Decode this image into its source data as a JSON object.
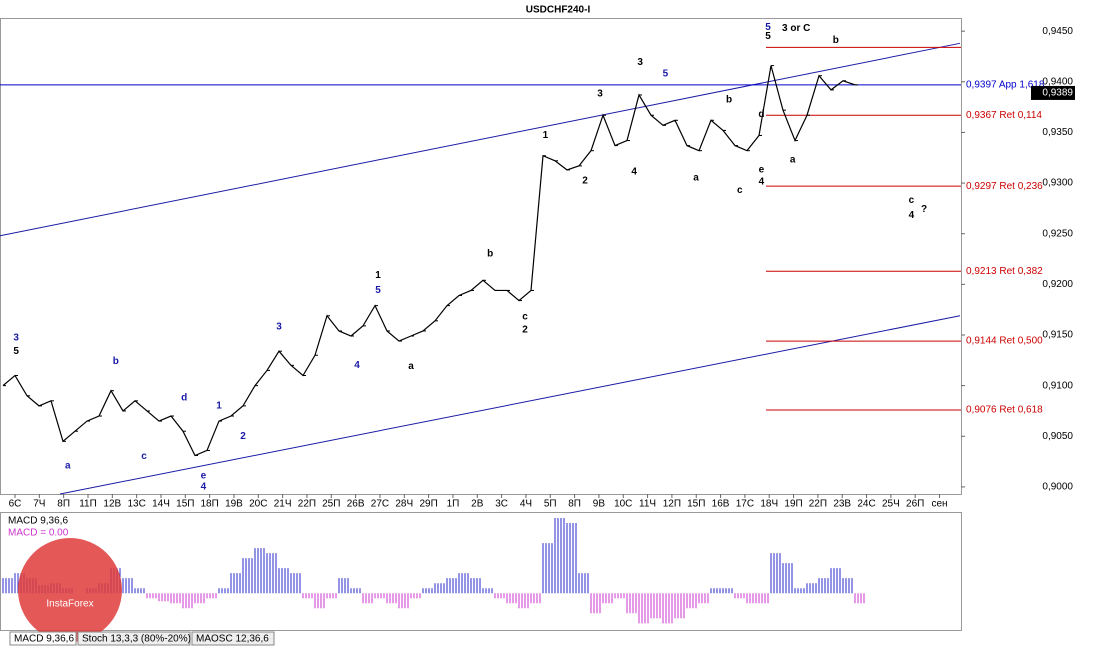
{
  "chart_data": {
    "type": "line",
    "title": "USDCHF240-I",
    "watermark": "InstaForex",
    "ylim": [
      0.8993,
      0.9463
    ],
    "yticks": [
      {
        "value": 0.9,
        "label": "0,9000"
      },
      {
        "value": 0.905,
        "label": "0,9050"
      },
      {
        "value": 0.91,
        "label": "0,9100"
      },
      {
        "value": 0.915,
        "label": "0,9150"
      },
      {
        "value": 0.92,
        "label": "0,9200"
      },
      {
        "value": 0.925,
        "label": "0,9250"
      },
      {
        "value": 0.93,
        "label": "0,9300"
      },
      {
        "value": 0.935,
        "label": "0,9350"
      },
      {
        "value": 0.94,
        "label": "0,9400"
      },
      {
        "value": 0.945,
        "label": "0,9450"
      }
    ],
    "x_labels": [
      "6С",
      "7Ч",
      "8П",
      "11П",
      "12В",
      "13С",
      "14Ч",
      "15П",
      "18П",
      "19В",
      "20С",
      "21Ч",
      "22П",
      "25П",
      "26В",
      "27С",
      "28Ч",
      "29П",
      "1П",
      "2В",
      "3С",
      "4Ч",
      "5П",
      "8П",
      "9В",
      "10С",
      "11Ч",
      "12П",
      "15П",
      "16В",
      "17С",
      "18Ч",
      "19П",
      "22П",
      "23В",
      "24С",
      "25Ч",
      "26П",
      "сен"
    ],
    "color": "#000000",
    "values": [
      0.91,
      0.911,
      0.909,
      0.908,
      0.9085,
      0.9045,
      0.9055,
      0.9065,
      0.907,
      0.9095,
      0.9075,
      0.9085,
      0.9075,
      0.9065,
      0.907,
      0.9055,
      0.9031,
      0.9036,
      0.9065,
      0.907,
      0.908,
      0.91,
      0.9115,
      0.9134,
      0.912,
      0.911,
      0.913,
      0.9169,
      0.9154,
      0.9149,
      0.9159,
      0.9179,
      0.9154,
      0.9144,
      0.9149,
      0.9154,
      0.9164,
      0.9179,
      0.9189,
      0.9194,
      0.9204,
      0.9194,
      0.9194,
      0.9184,
      0.9194,
      0.9327,
      0.9322,
      0.9313,
      0.9317,
      0.9332,
      0.9367,
      0.9337,
      0.9342,
      0.9387,
      0.9367,
      0.9357,
      0.9362,
      0.9337,
      0.9332,
      0.9362,
      0.9352,
      0.9337,
      0.9332,
      0.9347,
      0.9416,
      0.9372,
      0.9342,
      0.9367,
      0.9406,
      0.9392,
      0.9401,
      0.9397
    ],
    "current_price": {
      "value": 0.9389,
      "label": "0,9389"
    },
    "levels": [
      {
        "value": 0.9397,
        "label": "0,9397 App 1,618",
        "color": "#0000cc"
      },
      {
        "value": 0.9434,
        "color": "#cc0000"
      },
      {
        "value": 0.9367,
        "label": "0,9367 Ret 0,114",
        "color": "#cc0000"
      },
      {
        "value": 0.9297,
        "label": "0,9297 Ret 0,236",
        "color": "#cc0000"
      },
      {
        "value": 0.9213,
        "label": "0,9213 Ret 0,382",
        "color": "#cc0000"
      },
      {
        "value": 0.9144,
        "label": "0,9144 Ret 0,500",
        "color": "#cc0000"
      },
      {
        "value": 0.9076,
        "label": "0,9076 Ret 0,618",
        "color": "#cc0000"
      }
    ],
    "trendlines": [
      {
        "from": [
          -0.25,
          0.9248
        ],
        "to": [
          79.75,
          0.9438
        ]
      },
      {
        "from": [
          4.75,
          0.8993
        ],
        "to": [
          79.75,
          0.9169
        ]
      }
    ],
    "annotations": [
      {
        "text": "3 or C",
        "at": [
          66.1,
          0.9453
        ],
        "color": "#000000"
      },
      {
        "text": "5",
        "at": [
          63.75,
          0.9454
        ],
        "color": "#1a1aa6"
      },
      {
        "text": "5",
        "at": [
          63.75,
          0.9445
        ],
        "color": "#000000"
      },
      {
        "text": "b",
        "at": [
          69.4,
          0.9441
        ],
        "color": "#000000"
      },
      {
        "text": "3",
        "at": [
          53.1,
          0.9419
        ],
        "color": "#000000"
      },
      {
        "text": "5",
        "at": [
          55.2,
          0.9408
        ],
        "color": "#1a1aa6"
      },
      {
        "text": "3",
        "at": [
          49.75,
          0.9388
        ],
        "color": "#000000"
      },
      {
        "text": "1",
        "at": [
          45.2,
          0.9347
        ],
        "color": "#000000"
      },
      {
        "text": "2",
        "at": [
          48.5,
          0.9302
        ],
        "color": "#000000"
      },
      {
        "text": "4",
        "at": [
          52.6,
          0.9311
        ],
        "color": "#000000"
      },
      {
        "text": "a",
        "at": [
          57.75,
          0.9305
        ],
        "color": "#000000"
      },
      {
        "text": "b",
        "at": [
          60.5,
          0.9382
        ],
        "color": "#000000"
      },
      {
        "text": "c",
        "at": [
          61.4,
          0.9293
        ],
        "color": "#000000"
      },
      {
        "text": "d",
        "at": [
          63.2,
          0.9368
        ],
        "color": "#000000"
      },
      {
        "text": "e",
        "at": [
          63.2,
          0.9313
        ],
        "color": "#000000"
      },
      {
        "text": "4",
        "at": [
          63.2,
          0.9301
        ],
        "color": "#000000"
      },
      {
        "text": "a",
        "at": [
          65.8,
          0.9323
        ],
        "color": "#000000"
      },
      {
        "text": "c",
        "at": [
          75.7,
          0.9283
        ],
        "color": "#000000"
      },
      {
        "text": "4",
        "at": [
          75.7,
          0.9268
        ],
        "color": "#000000"
      },
      {
        "text": "?",
        "at": [
          76.75,
          0.9274
        ],
        "color": "#000000"
      },
      {
        "text": "c",
        "at": [
          43.5,
          0.9168
        ],
        "color": "#000000"
      },
      {
        "text": "2",
        "at": [
          43.5,
          0.9155
        ],
        "color": "#000000"
      },
      {
        "text": "b",
        "at": [
          40.6,
          0.923
        ],
        "color": "#000000"
      },
      {
        "text": "1",
        "at": [
          31.25,
          0.9209
        ],
        "color": "#000000"
      },
      {
        "text": "5",
        "at": [
          31.25,
          0.9194
        ],
        "color": "#1a1aa6"
      },
      {
        "text": "3",
        "at": [
          23,
          0.9158
        ],
        "color": "#1a1aa6"
      },
      {
        "text": "4",
        "at": [
          29.5,
          0.912
        ],
        "color": "#1a1aa6"
      },
      {
        "text": "a",
        "at": [
          34,
          0.9119
        ],
        "color": "#000000"
      },
      {
        "text": "2",
        "at": [
          20,
          0.905
        ],
        "color": "#1a1aa6"
      },
      {
        "text": "1",
        "at": [
          18,
          0.908
        ],
        "color": "#1a1aa6"
      },
      {
        "text": "d",
        "at": [
          15.1,
          0.9088
        ],
        "color": "#1a1aa6"
      },
      {
        "text": "e",
        "at": [
          16.7,
          0.9011
        ],
        "color": "#1a1aa6"
      },
      {
        "text": "4",
        "at": [
          16.7,
          0.9
        ],
        "color": "#1a1aa6"
      },
      {
        "text": "c",
        "at": [
          11.75,
          0.903
        ],
        "color": "#1a1aa6"
      },
      {
        "text": "b",
        "at": [
          9.4,
          0.9124
        ],
        "color": "#1a1aa6"
      },
      {
        "text": "a",
        "at": [
          5.4,
          0.9021
        ],
        "color": "#1a1aa6"
      },
      {
        "text": "3",
        "at": [
          1.1,
          0.9147
        ],
        "color": "#1a1aa6"
      },
      {
        "text": "5",
        "at": [
          1.1,
          0.9134
        ],
        "color": "#000000"
      }
    ],
    "macd": {
      "title": "MACD 9,36,6",
      "readout": "MACD = 0.00",
      "ylim": [
        -0.0011,
        0.0024
      ],
      "positive_color": "#2a2acc",
      "negative_color": "#cc33cc",
      "values": [
        0.00045,
        0.0006,
        0.00045,
        0.00024,
        0.0003,
        0.00015,
        0,
        0.00015,
        0.0003,
        0.00075,
        0.00045,
        0.00015,
        -0.00015,
        -0.00024,
        -0.0003,
        -0.00045,
        -0.0003,
        -0.00015,
        0.00015,
        0.0006,
        0.00105,
        0.00135,
        0.0012,
        0.00075,
        0.0006,
        -0.00015,
        -0.00045,
        -0.00015,
        0.00045,
        0.00015,
        -0.0003,
        -0.00015,
        -0.0003,
        -0.00045,
        -0.00015,
        0.00015,
        0.0003,
        0.00045,
        0.0006,
        0.00045,
        0.00015,
        -0.00015,
        -0.0003,
        -0.00045,
        -0.0003,
        0.0015,
        0.00225,
        0.0021,
        0.0006,
        -0.0006,
        -0.0003,
        -0.00015,
        -0.0006,
        -0.0009,
        -0.00075,
        -0.0009,
        -0.00075,
        -0.00045,
        -0.0003,
        0.00015,
        0.00015,
        -0.00015,
        -0.0003,
        -0.0003,
        0.0012,
        0.0009,
        0.00015,
        0.0003,
        0.00045,
        0.00075,
        0.00045,
        -0.0003
      ]
    },
    "tabs": [
      "MACD 9,36,6",
      "Stoch 13,3,3 (80%-20%)",
      "MAOSC 12,36,6"
    ]
  }
}
